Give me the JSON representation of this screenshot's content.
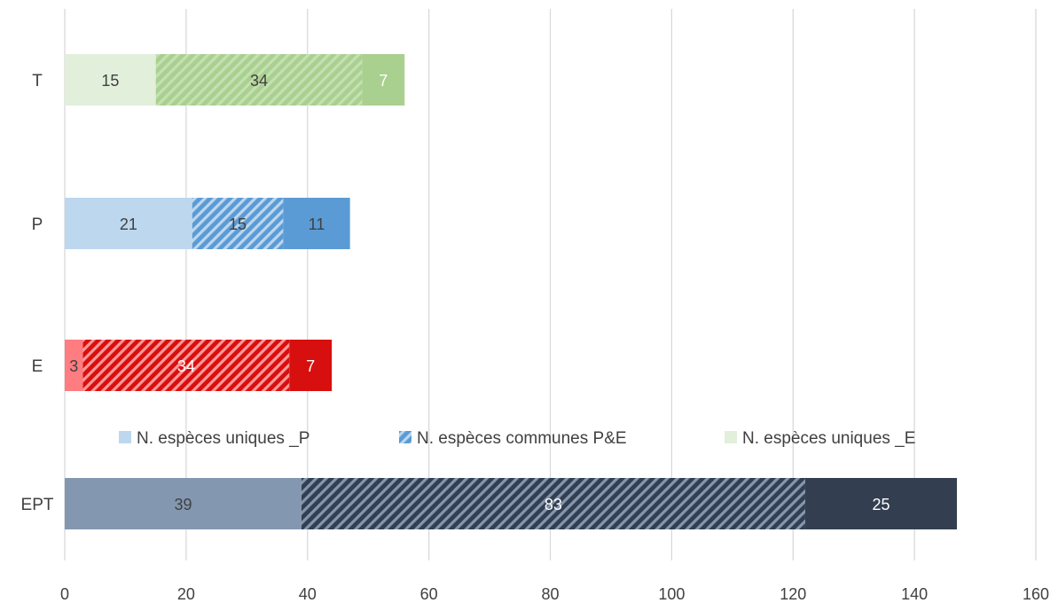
{
  "chart_data": {
    "type": "bar",
    "orientation": "horizontal",
    "stacked": true,
    "categories": [
      "T",
      "P",
      "E",
      "EPT"
    ],
    "series": [
      {
        "name": "N. espèces uniques _P",
        "values": [
          15,
          21,
          3,
          39
        ]
      },
      {
        "name": "N. espèces communes P&E",
        "values": [
          34,
          15,
          34,
          83
        ]
      },
      {
        "name": "N. espèces uniques _E",
        "values": [
          7,
          11,
          7,
          25
        ]
      }
    ],
    "xlim": [
      0,
      160
    ],
    "xticks": [
      0,
      20,
      40,
      60,
      80,
      100,
      120,
      140,
      160
    ],
    "grid": "vertical",
    "legend_position": "inside-middle",
    "colors": {
      "T": [
        "#e2efda",
        "#a9d08e",
        "#a9d08e"
      ],
      "P": [
        "#bdd7ee",
        "#5b9bd5",
        "#5b9bd5"
      ],
      "E": [
        "#ff7c80",
        "#d80f0f",
        "#d80f0f"
      ],
      "EPT": [
        "#8497b0",
        "#333f50",
        "#333f50"
      ]
    },
    "label_colors": {
      "T": [
        "#404040",
        "#404040",
        "#ffffff"
      ],
      "P": [
        "#404040",
        "#404040",
        "#404040"
      ],
      "E": [
        "#404040",
        "#ffffff",
        "#ffffff"
      ],
      "EPT": [
        "#404040",
        "#ffffff",
        "#ffffff"
      ]
    },
    "hatch_colors": {
      "T": "#c5e0b4",
      "P": "#bdd7ee",
      "E": "#ff9999",
      "EPT": "#8497b0"
    },
    "legend_colors": [
      "#bdd7ee",
      "#5b9bd5",
      "#e2efda"
    ]
  }
}
